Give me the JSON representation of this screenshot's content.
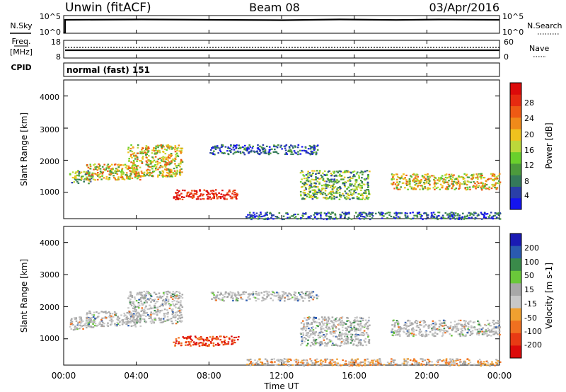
{
  "header": {
    "station": "Unwin (fitACF)",
    "beam": "Beam 08",
    "date": "03/Apr/2016"
  },
  "left_labels": {
    "nsky": "N.Sky",
    "freq_line1": "Freq.",
    "freq_line2": "[MHz]",
    "cpid": "CPID"
  },
  "right_labels": {
    "nsearch": "N.Search",
    "nave": "Nave"
  },
  "noise_panel": {
    "left_ticks": [
      "10^5",
      "10^0"
    ],
    "right_ticks": [
      "10^5",
      "10^0"
    ]
  },
  "freq_panel": {
    "left_ticks": [
      "18",
      "8"
    ],
    "right_ticks": [
      "60",
      "0"
    ]
  },
  "cpid_text": "normal (fast) 151",
  "x_axis": {
    "label": "Time UT",
    "ticks": [
      "00:00",
      "04:00",
      "08:00",
      "12:00",
      "16:00",
      "20:00",
      "00:00"
    ]
  },
  "y_axis": {
    "label": "Slant Range [km]",
    "ticks": [
      "1000",
      "2000",
      "3000",
      "4000"
    ]
  },
  "colorbars": {
    "power": {
      "label": "Power [dB]",
      "ticks": [
        "4",
        "8",
        "12",
        "16",
        "20",
        "24",
        "28"
      ],
      "colors": [
        "#1414ee",
        "#2a3fa8",
        "#347a5a",
        "#4c9a3c",
        "#6ad02c",
        "#bcd83a",
        "#f0c21e",
        "#f08a1a",
        "#ee5a14",
        "#e62a10",
        "#dc0a0a"
      ]
    },
    "velocity": {
      "label": "Velocity [m s-1]",
      "ticks": [
        "200",
        "100",
        "50",
        "15",
        "-15",
        "-50",
        "-100",
        "-200"
      ],
      "colors": [
        "#1a1ab4",
        "#2a5ab0",
        "#3a8a4a",
        "#6ac83a",
        "#a8a8a8",
        "#c8c8c8",
        "#f0a030",
        "#f07020",
        "#e83a14",
        "#dc0a0a"
      ]
    }
  },
  "chart_data": {
    "type": "heatmap",
    "x_range_hours": [
      0,
      24
    ],
    "y_range_km": [
      180,
      4500
    ],
    "power_features": [
      {
        "t0": 0.3,
        "t1": 1.6,
        "r0": 1300,
        "r1": 1700,
        "level": "mid"
      },
      {
        "t0": 1.2,
        "t1": 4.2,
        "r0": 1400,
        "r1": 1900,
        "level": "high"
      },
      {
        "t0": 3.5,
        "t1": 6.5,
        "r0": 1500,
        "r1": 2500,
        "level": "high"
      },
      {
        "t0": 6.0,
        "t1": 9.6,
        "r0": 800,
        "r1": 1100,
        "level": "max"
      },
      {
        "t0": 8.0,
        "t1": 14.0,
        "r0": 2200,
        "r1": 2500,
        "level": "low"
      },
      {
        "t0": 13.0,
        "t1": 16.8,
        "r0": 800,
        "r1": 1700,
        "level": "mid"
      },
      {
        "t0": 18.0,
        "t1": 24.0,
        "r0": 1100,
        "r1": 1600,
        "level": "high"
      },
      {
        "t0": 10.0,
        "t1": 24.0,
        "r0": 180,
        "r1": 400,
        "level": "low"
      }
    ]
  }
}
